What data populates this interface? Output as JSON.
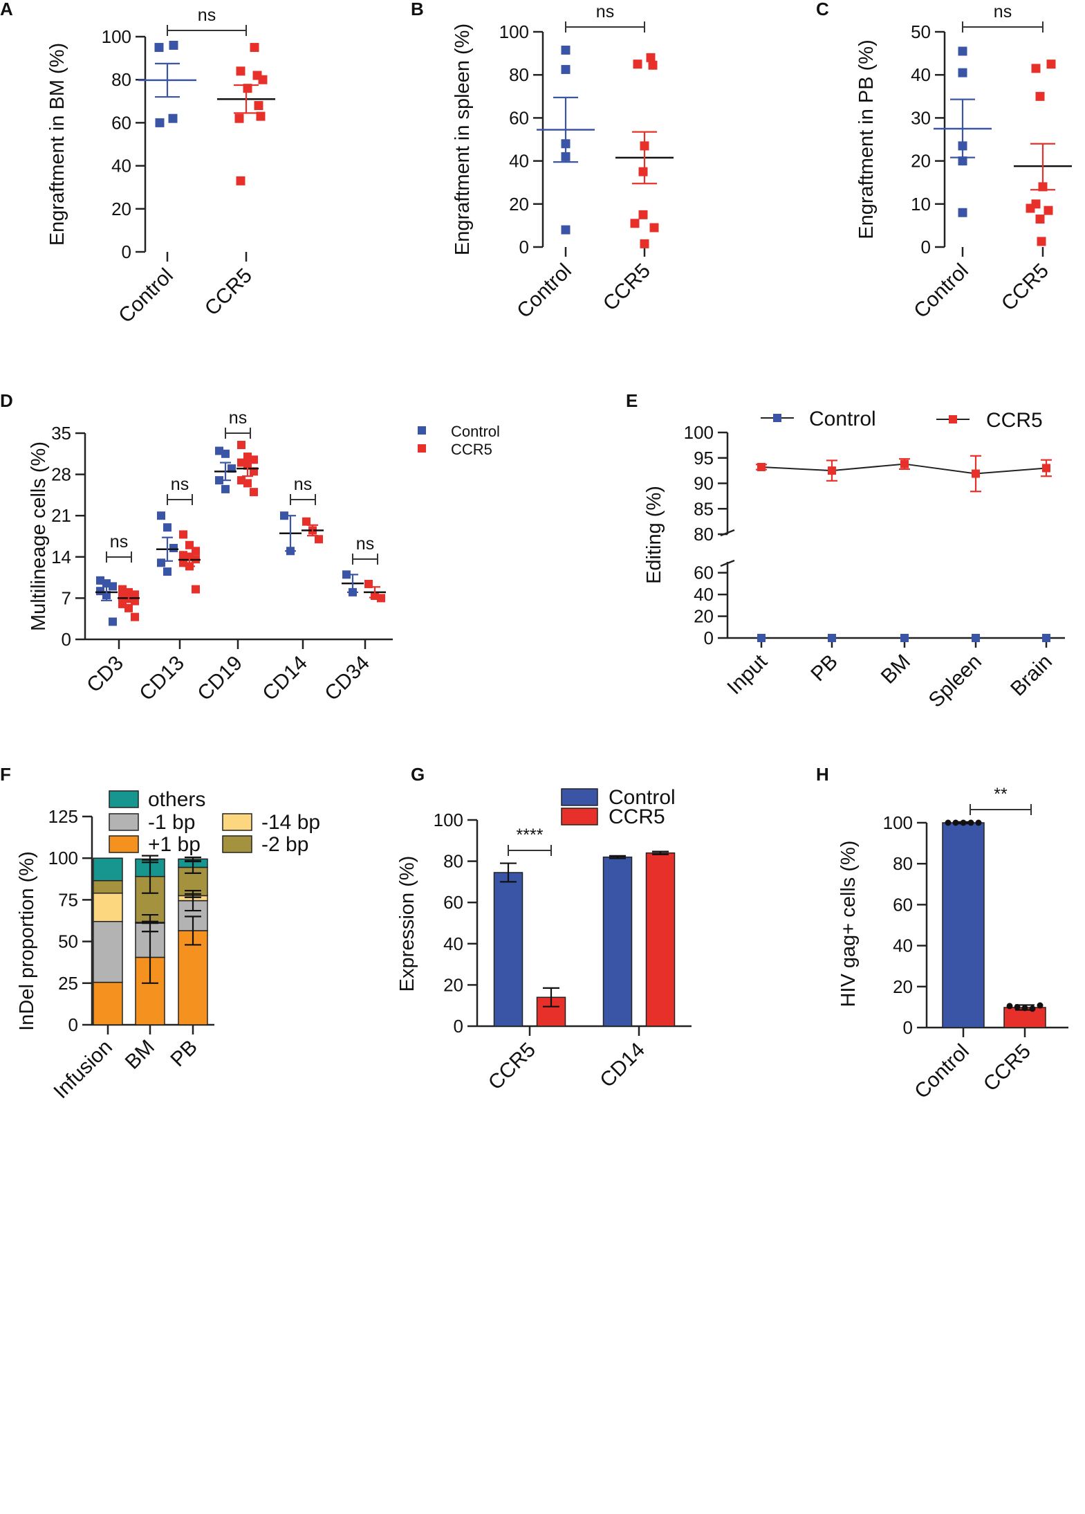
{
  "figure": "Multi-panel figure: engraftment, lineage, editing, indel and expression",
  "colors": {
    "control": "#3b55a6",
    "ccr5": "#e8302a",
    "axis": "#222222",
    "others": "#16968f",
    "minus1": "#b3b3b3",
    "minus14": "#fdd780",
    "plus1": "#f5911e",
    "minus2": "#a4923f"
  },
  "chart_data": [
    {
      "id": "A",
      "type": "scatter",
      "panel_label": "A",
      "ylabel": "Engraftment in BM (%)",
      "ylim": [
        0,
        100
      ],
      "yticks": [
        "0",
        "20",
        "40",
        "60",
        "80",
        "100"
      ],
      "categories": [
        "Control",
        "CCR5"
      ],
      "series": [
        {
          "name": "Control",
          "points": [
            96,
            95,
            62,
            60
          ],
          "mean": 79.8,
          "err": [
            72,
            87.5
          ]
        },
        {
          "name": "CCR5",
          "points": [
            95,
            84,
            82,
            80,
            76,
            68,
            63,
            62,
            33
          ],
          "mean": 71,
          "err": [
            64.5,
            77.5
          ]
        }
      ],
      "significance": "ns"
    },
    {
      "id": "B",
      "type": "scatter",
      "panel_label": "B",
      "ylabel": "Engraftment in spleen (%)",
      "ylim": [
        0,
        100
      ],
      "yticks": [
        "0",
        "20",
        "40",
        "60",
        "80",
        "100"
      ],
      "categories": [
        "Control",
        "CCR5"
      ],
      "series": [
        {
          "name": "Control",
          "points": [
            91.5,
            82.5,
            48,
            42,
            8
          ],
          "mean": 54.5,
          "err": [
            39.5,
            69.5
          ]
        },
        {
          "name": "CCR5",
          "points": [
            88,
            85,
            84.5,
            47,
            35,
            15,
            11,
            9,
            1.5
          ],
          "mean": 41.5,
          "err": [
            29.5,
            53.5
          ]
        }
      ],
      "significance": "ns"
    },
    {
      "id": "C",
      "type": "scatter",
      "panel_label": "C",
      "ylabel": "Engraftment in PB (%)",
      "ylim": [
        0,
        50
      ],
      "yticks": [
        "0",
        "10",
        "20",
        "30",
        "40",
        "50"
      ],
      "categories": [
        "Control",
        "CCR5"
      ],
      "series": [
        {
          "name": "Control",
          "points": [
            45.5,
            40.5,
            23.5,
            20,
            8
          ],
          "mean": 27.5,
          "err": [
            20.8,
            34.3
          ]
        },
        {
          "name": "CCR5",
          "points": [
            42.5,
            41.5,
            35,
            14,
            10,
            9,
            8.5,
            6.5,
            1.3
          ],
          "mean": 18.8,
          "err": [
            13.3,
            24
          ]
        }
      ],
      "significance": "ns"
    },
    {
      "id": "D",
      "type": "scatter",
      "panel_label": "D",
      "ylabel": "Multilineage cells (%)",
      "ylim": [
        0,
        35
      ],
      "yticks": [
        "0",
        "7",
        "14",
        "21",
        "28",
        "35"
      ],
      "categories": [
        "CD3",
        "CD13",
        "CD19",
        "CD14",
        "CD34"
      ],
      "legend": [
        "Control",
        "CCR5"
      ],
      "series": [
        {
          "name": "Control",
          "points": [
            [
              10,
              9.5,
              9,
              8.2,
              7.5,
              3
            ],
            [
              21,
              19,
              15.5,
              13,
              11.5
            ],
            [
              32,
              31.5,
              29,
              27,
              25.5
            ],
            [
              21,
              15
            ],
            [
              11,
              8
            ]
          ],
          "mean": [
            8,
            15.3,
            28.5,
            18,
            9.5
          ],
          "err": [
            [
              6.6,
              9.4
            ],
            [
              13.3,
              17.3
            ],
            [
              27,
              30
            ],
            [
              15,
              21
            ],
            [
              8,
              11
            ]
          ]
        },
        {
          "name": "CCR5",
          "points": [
            [
              8.5,
              8,
              7.6,
              7.2,
              7,
              6.5,
              6,
              5.3,
              3.8
            ],
            [
              17.8,
              16,
              15,
              14.3,
              14,
              13.6,
              13,
              12.4,
              8.5
            ],
            [
              33,
              31,
              30.5,
              30,
              29.5,
              28.5,
              27,
              26.5,
              25
            ],
            [
              20,
              18.5,
              17
            ],
            [
              9.4,
              7.4,
              7
            ]
          ],
          "mean": [
            7,
            13.5,
            29,
            18.5,
            8
          ],
          "err": [
            [
              6.3,
              7.7
            ],
            [
              12.4,
              14.6
            ],
            [
              27.7,
              30.3
            ],
            [
              17.6,
              19.4
            ],
            [
              7.1,
              8.9
            ]
          ]
        }
      ],
      "significance": [
        "ns",
        "ns",
        "ns",
        "ns",
        "ns"
      ]
    },
    {
      "id": "E",
      "type": "line",
      "panel_label": "E",
      "ylabel": "Editing (%)",
      "yticks_upper": [
        "80",
        "85",
        "90",
        "95",
        "100"
      ],
      "yticks_lower": [
        "0",
        "20",
        "40",
        "60"
      ],
      "ylim_upper": [
        80,
        100
      ],
      "ylim_lower": [
        0,
        70
      ],
      "categories": [
        "Input",
        "PB",
        "BM",
        "Spleen",
        "Brain"
      ],
      "legend": [
        "Control",
        "CCR5"
      ],
      "series": [
        {
          "name": "Control",
          "values": [
            0,
            0,
            0,
            0,
            0
          ]
        },
        {
          "name": "CCR5",
          "values": [
            93.2,
            92.5,
            93.8,
            91.9,
            93
          ],
          "err": [
            0.5,
            2,
            1,
            3.5,
            1.6
          ]
        }
      ]
    },
    {
      "id": "F",
      "type": "bar",
      "stacked": true,
      "panel_label": "F",
      "ylabel": "InDel proportion (%)",
      "ylim": [
        0,
        125
      ],
      "yticks": [
        "0",
        "25",
        "50",
        "75",
        "100",
        "125"
      ],
      "categories": [
        "Infusion",
        "BM",
        "PB"
      ],
      "legend": [
        "others",
        "-1 bp",
        "-14 bp",
        "+1 bp",
        "-2 bp"
      ],
      "series": [
        {
          "name": "+1 bp",
          "values": [
            25.5,
            40.5,
            56.5
          ],
          "err": [
            0,
            15.5,
            8.5
          ]
        },
        {
          "name": "-1 bp",
          "values": [
            36.5,
            20.5,
            18
          ],
          "err": [
            0,
            5,
            6
          ]
        },
        {
          "name": "-14 bp",
          "values": [
            17,
            0.5,
            3
          ],
          "err": [
            0,
            0.5,
            1
          ]
        },
        {
          "name": "-2 bp",
          "values": [
            7.5,
            27.5,
            17
          ],
          "err": [
            0,
            10,
            3.5
          ]
        },
        {
          "name": "others",
          "values": [
            13.5,
            10.5,
            5
          ],
          "err": [
            0,
            2,
            1
          ]
        }
      ]
    },
    {
      "id": "G",
      "type": "bar",
      "panel_label": "G",
      "ylabel": "Expression (%)",
      "ylim": [
        0,
        100
      ],
      "yticks": [
        "0",
        "20",
        "40",
        "60",
        "80",
        "100"
      ],
      "categories": [
        "CCR5",
        "CD14"
      ],
      "legend": [
        "Control",
        "CCR5"
      ],
      "series": [
        {
          "name": "Control",
          "values": [
            74.5,
            82
          ],
          "err": [
            4.5,
            0.6
          ]
        },
        {
          "name": "CCR5",
          "values": [
            14,
            84
          ],
          "err": [
            4.5,
            0.7
          ]
        }
      ],
      "significance": "****"
    },
    {
      "id": "H",
      "type": "bar",
      "panel_label": "H",
      "ylabel": "HIV gag+ cells (%)",
      "ylim": [
        0,
        100
      ],
      "yticks": [
        "0",
        "20",
        "40",
        "60",
        "80",
        "100"
      ],
      "categories": [
        "Control",
        "CCR5"
      ],
      "series": [
        {
          "name": "Control",
          "value": 100,
          "err": 0.4,
          "points": [
            100,
            100,
            100,
            100,
            100
          ]
        },
        {
          "name": "CCR5",
          "value": 9.8,
          "err": 1.2,
          "points": [
            10.5,
            10,
            9.5,
            9.2,
            10.8
          ]
        }
      ],
      "significance": "**"
    }
  ]
}
